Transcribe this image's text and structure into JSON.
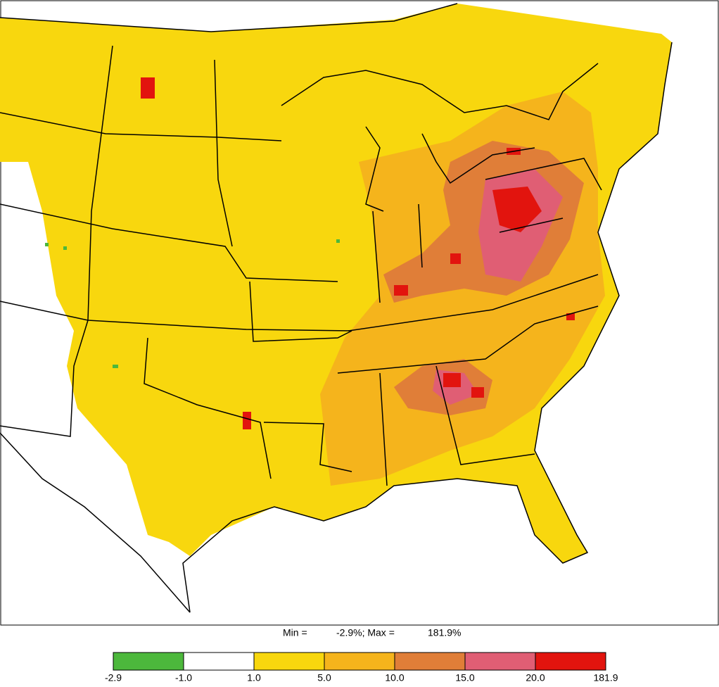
{
  "summary": {
    "min_text": "Min =",
    "min_value": "-2.9%; Max =",
    "max_value": "181.9%"
  },
  "legend": {
    "bins": [
      {
        "value": -2.9,
        "label": "-2.9"
      },
      {
        "value": -1.0,
        "label": "-1.0"
      },
      {
        "value": 1.0,
        "label": "1.0"
      },
      {
        "value": 5.0,
        "label": "5.0"
      },
      {
        "value": 10.0,
        "label": "10.0"
      },
      {
        "value": 15.0,
        "label": "15.0"
      },
      {
        "value": 20.0,
        "label": "20.0"
      },
      {
        "value": 181.9,
        "label": "181.9"
      }
    ],
    "colors": [
      "#4cb83c",
      "#ffffff",
      "#f8d70e",
      "#f5b41c",
      "#e07e38",
      "#e05e74",
      "#e2140e"
    ]
  }
}
